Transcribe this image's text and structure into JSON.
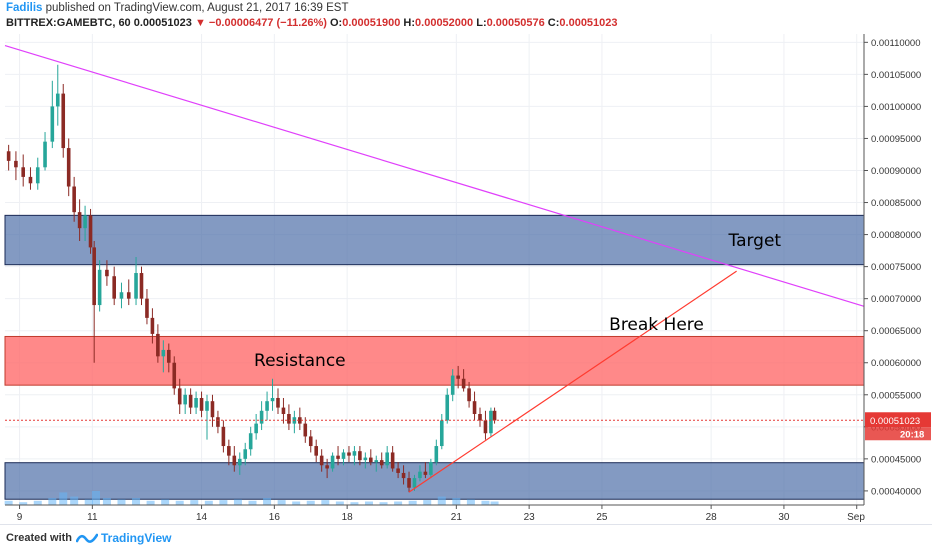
{
  "header": {
    "author": "Fadilis",
    "published": "published on TradingView.com, August 21, 2017 16:39 EST",
    "symbol": "BITTREX:GAMEBTC, 60",
    "last": "0.00051023",
    "change": "−0.00006477 (−11.26%)",
    "open_label": "O:",
    "open": "0.00051900",
    "high_label": "H:",
    "high": "0.00052000",
    "low_label": "L:",
    "low": "0.00050576",
    "close_label": "C:",
    "close": "0.00051023"
  },
  "footer": {
    "created": "Created with",
    "brand": "TradingView"
  },
  "colors": {
    "up": "#26a69a",
    "down": "#8b2a24",
    "zone_blue": "#4f6fa8",
    "zone_red": "#ff6b6b",
    "trend_magenta": "#e040fb",
    "trend_red": "#ff3b30",
    "price_line": "#e53935",
    "volume": "#64b5f6"
  },
  "chart_data": {
    "type": "candlestick",
    "symbol": "BITTREX:GAMEBTC",
    "interval": "60",
    "x_ticks": [
      "9",
      "11",
      "14",
      "16",
      "18",
      "21",
      "23",
      "25",
      "28",
      "30",
      "Sep"
    ],
    "x_tick_days": [
      9,
      11,
      14,
      16,
      18,
      21,
      23,
      25,
      28,
      30,
      32
    ],
    "x_range_days": [
      8.6,
      32.2
    ],
    "y_ticks": [
      "0.00040000",
      "0.00045000",
      "0.00050000",
      "0.00055000",
      "0.00060000",
      "0.00065000",
      "0.00070000",
      "0.00075000",
      "0.00080000",
      "0.00085000",
      "0.00090000",
      "0.00095000",
      "0.00100000",
      "0.00105000",
      "0.00110000"
    ],
    "ylim": [
      0.000378,
      0.001113
    ],
    "zones": [
      {
        "label": "Target",
        "low": 0.000753,
        "high": 0.00083,
        "color": "blue"
      },
      {
        "label": "Resistance",
        "low": 0.000565,
        "high": 0.000641,
        "color": "red"
      },
      {
        "label": "",
        "low": 0.000387,
        "high": 0.000444,
        "color": "blue"
      }
    ],
    "trendlines": [
      {
        "from": [
          8.6,
          0.001095
        ],
        "to": [
          32.2,
          0.000688
        ],
        "color": "magenta"
      },
      {
        "from": [
          19.7,
          0.000398
        ],
        "to": [
          28.7,
          0.000743
        ],
        "color": "red"
      }
    ],
    "annotations": [
      {
        "text": "Target",
        "at": [
          29.2,
          0.00079
        ]
      },
      {
        "text": "Resistance",
        "at": [
          16.7,
          0.000603
        ]
      },
      {
        "text": "Break Here",
        "at": [
          26.5,
          0.000659
        ]
      }
    ],
    "price_line": 0.00051023,
    "price_label": "0.00051023",
    "countdown": "20:18",
    "candles": [
      [
        8.7,
        0.00093,
        0.00094,
        0.0009,
        0.000915
      ],
      [
        8.9,
        0.000915,
        0.00093,
        0.000885,
        0.000905
      ],
      [
        9.1,
        0.000905,
        0.000925,
        0.000875,
        0.00089
      ],
      [
        9.3,
        0.00089,
        0.000905,
        0.00087,
        0.00088
      ],
      [
        9.5,
        0.00088,
        0.00092,
        0.00087,
        0.000905
      ],
      [
        9.7,
        0.000905,
        0.00096,
        0.0009,
        0.000945
      ],
      [
        9.9,
        0.000945,
        0.00104,
        0.000935,
        0.001
      ],
      [
        10.05,
        0.001,
        0.001065,
        0.00097,
        0.00102
      ],
      [
        10.2,
        0.00102,
        0.001035,
        0.00092,
        0.000935
      ],
      [
        10.35,
        0.000935,
        0.00095,
        0.00086,
        0.000875
      ],
      [
        10.5,
        0.000875,
        0.00089,
        0.00082,
        0.000835
      ],
      [
        10.65,
        0.000835,
        0.000855,
        0.00079,
        0.00081
      ],
      [
        10.8,
        0.00081,
        0.000845,
        0.00079,
        0.00083
      ],
      [
        10.95,
        0.00083,
        0.00084,
        0.00077,
        0.00078
      ],
      [
        11.05,
        0.00078,
        0.00079,
        0.0006,
        0.00069
      ],
      [
        11.2,
        0.00069,
        0.00076,
        0.00068,
        0.000745
      ],
      [
        11.4,
        0.000745,
        0.00076,
        0.00072,
        0.000735
      ],
      [
        11.6,
        0.000735,
        0.00075,
        0.00069,
        0.0007
      ],
      [
        11.8,
        0.0007,
        0.000725,
        0.000685,
        0.00071
      ],
      [
        12.0,
        0.00071,
        0.00073,
        0.00069,
        0.0007
      ],
      [
        12.2,
        0.0007,
        0.000765,
        0.00069,
        0.00074
      ],
      [
        12.35,
        0.00074,
        0.00075,
        0.00069,
        0.0007
      ],
      [
        12.5,
        0.0007,
        0.000715,
        0.00066,
        0.00067
      ],
      [
        12.65,
        0.00067,
        0.000685,
        0.00063,
        0.000645
      ],
      [
        12.8,
        0.000645,
        0.00066,
        0.0006,
        0.00061
      ],
      [
        12.95,
        0.00061,
        0.000635,
        0.000585,
        0.00062
      ],
      [
        13.1,
        0.00062,
        0.00063,
        0.000585,
        0.0006
      ],
      [
        13.25,
        0.0006,
        0.00061,
        0.00055,
        0.00056
      ],
      [
        13.4,
        0.00056,
        0.000575,
        0.00052,
        0.000535
      ],
      [
        13.55,
        0.000535,
        0.00056,
        0.00052,
        0.00055
      ],
      [
        13.7,
        0.00055,
        0.00056,
        0.00052,
        0.00053
      ],
      [
        13.85,
        0.00053,
        0.000555,
        0.00052,
        0.000545
      ],
      [
        14.0,
        0.000545,
        0.000555,
        0.000515,
        0.000525
      ],
      [
        14.15,
        0.000525,
        0.00055,
        0.00048,
        0.00054
      ],
      [
        14.3,
        0.00054,
        0.00055,
        0.0005,
        0.000515
      ],
      [
        14.45,
        0.000515,
        0.000525,
        0.00049,
        0.0005
      ],
      [
        14.6,
        0.0005,
        0.00051,
        0.00046,
        0.00047
      ],
      [
        14.75,
        0.00047,
        0.00048,
        0.00044,
        0.000455
      ],
      [
        14.9,
        0.000455,
        0.00047,
        0.00043,
        0.00044
      ],
      [
        15.05,
        0.00044,
        0.00046,
        0.000425,
        0.00045
      ],
      [
        15.2,
        0.00045,
        0.000475,
        0.00044,
        0.000465
      ],
      [
        15.35,
        0.000465,
        0.0005,
        0.000455,
        0.00049
      ],
      [
        15.5,
        0.00049,
        0.00052,
        0.00048,
        0.000505
      ],
      [
        15.65,
        0.000505,
        0.00054,
        0.000495,
        0.000525
      ],
      [
        15.8,
        0.000525,
        0.000555,
        0.00051,
        0.00054
      ],
      [
        15.95,
        0.00054,
        0.000575,
        0.000525,
        0.000545
      ],
      [
        16.1,
        0.000545,
        0.00056,
        0.00052,
        0.00053
      ],
      [
        16.25,
        0.00053,
        0.000545,
        0.000505,
        0.00052
      ],
      [
        16.4,
        0.00052,
        0.000535,
        0.000495,
        0.000505
      ],
      [
        16.55,
        0.000505,
        0.000525,
        0.00049,
        0.000515
      ],
      [
        16.7,
        0.000515,
        0.00053,
        0.000495,
        0.000505
      ],
      [
        16.85,
        0.000505,
        0.000515,
        0.000475,
        0.000485
      ],
      [
        17.0,
        0.000485,
        0.000495,
        0.00046,
        0.00047
      ],
      [
        17.15,
        0.00047,
        0.00048,
        0.000445,
        0.000455
      ],
      [
        17.3,
        0.000455,
        0.000465,
        0.00043,
        0.00044
      ],
      [
        17.45,
        0.00044,
        0.00045,
        0.00042,
        0.000435
      ],
      [
        17.6,
        0.000435,
        0.00046,
        0.00043,
        0.000455
      ],
      [
        17.75,
        0.000455,
        0.00047,
        0.00044,
        0.00045
      ],
      [
        17.9,
        0.00045,
        0.000465,
        0.00044,
        0.00046
      ],
      [
        18.05,
        0.00046,
        0.00047,
        0.000445,
        0.000455
      ],
      [
        18.2,
        0.000455,
        0.00047,
        0.00044,
        0.000462
      ],
      [
        18.35,
        0.000462,
        0.00047,
        0.00044,
        0.000448
      ],
      [
        18.5,
        0.000448,
        0.00046,
        0.000435,
        0.000452
      ],
      [
        18.65,
        0.000452,
        0.000465,
        0.00044,
        0.000445
      ],
      [
        18.8,
        0.000445,
        0.000455,
        0.00043,
        0.000448
      ],
      [
        18.95,
        0.000448,
        0.00046,
        0.000435,
        0.00044
      ],
      [
        19.1,
        0.00044,
        0.00047,
        0.000435,
        0.00046
      ],
      [
        19.25,
        0.00046,
        0.00047,
        0.00043,
        0.000435
      ],
      [
        19.4,
        0.000435,
        0.000445,
        0.00042,
        0.000428
      ],
      [
        19.55,
        0.000428,
        0.00044,
        0.00041,
        0.00042
      ],
      [
        19.7,
        0.00042,
        0.00043,
        0.000398,
        0.000405
      ],
      [
        19.85,
        0.000405,
        0.000425,
        0.0004,
        0.00042
      ],
      [
        20.0,
        0.00042,
        0.00044,
        0.000415,
        0.00043
      ],
      [
        20.15,
        0.00043,
        0.000445,
        0.00042,
        0.000425
      ],
      [
        20.3,
        0.000425,
        0.00045,
        0.00042,
        0.000445
      ],
      [
        20.45,
        0.000445,
        0.00048,
        0.00044,
        0.00047
      ],
      [
        20.6,
        0.00047,
        0.00052,
        0.000465,
        0.00051
      ],
      [
        20.75,
        0.00051,
        0.00056,
        0.000505,
        0.00055
      ],
      [
        20.9,
        0.00055,
        0.00059,
        0.00054,
        0.00058
      ],
      [
        21.05,
        0.00058,
        0.000595,
        0.00056,
        0.000575
      ],
      [
        21.2,
        0.000575,
        0.00059,
        0.000555,
        0.00056
      ],
      [
        21.35,
        0.00056,
        0.00057,
        0.00053,
        0.00054
      ],
      [
        21.5,
        0.00054,
        0.000555,
        0.00051,
        0.00052
      ],
      [
        21.65,
        0.00052,
        0.00053,
        0.0005,
        0.00051
      ],
      [
        21.8,
        0.00051,
        0.000525,
        0.00048,
        0.00049
      ],
      [
        21.95,
        0.00049,
        0.00053,
        0.000485,
        0.000525
      ],
      [
        22.05,
        0.000525,
        0.00053,
        0.000505,
        0.00051
      ]
    ],
    "volume": [
      [
        8.7,
        0.3
      ],
      [
        9.1,
        0.2
      ],
      [
        9.5,
        0.3
      ],
      [
        9.9,
        0.5
      ],
      [
        10.2,
        0.9
      ],
      [
        10.5,
        0.6
      ],
      [
        10.9,
        0.4
      ],
      [
        11.1,
        1.0
      ],
      [
        11.4,
        0.5
      ],
      [
        11.8,
        0.4
      ],
      [
        12.2,
        0.5
      ],
      [
        12.6,
        0.3
      ],
      [
        13.0,
        0.4
      ],
      [
        13.4,
        0.3
      ],
      [
        13.8,
        0.35
      ],
      [
        14.2,
        0.3
      ],
      [
        14.6,
        0.35
      ],
      [
        15.0,
        0.4
      ],
      [
        15.4,
        0.3
      ],
      [
        15.8,
        0.5
      ],
      [
        16.2,
        0.35
      ],
      [
        16.6,
        0.25
      ],
      [
        17.0,
        0.3
      ],
      [
        17.4,
        0.35
      ],
      [
        17.8,
        0.25
      ],
      [
        18.2,
        0.2
      ],
      [
        18.6,
        0.25
      ],
      [
        19.0,
        0.2
      ],
      [
        19.4,
        0.25
      ],
      [
        19.8,
        0.3
      ],
      [
        20.2,
        0.35
      ],
      [
        20.6,
        0.6
      ],
      [
        21.0,
        0.5
      ],
      [
        21.4,
        0.4
      ],
      [
        21.8,
        0.3
      ],
      [
        22.05,
        0.25
      ]
    ]
  }
}
